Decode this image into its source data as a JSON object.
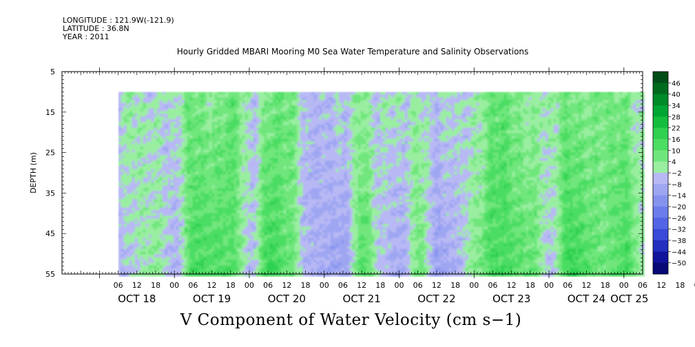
{
  "header": {
    "longitude": "LONGITUDE : 121.9W(-121.9)",
    "latitude": "LATITUDE : 36.8N",
    "year": "YEAR : 2011",
    "title": "Hourly Gridded MBARI Mooring M0 Sea Water Temperature and Salinity Observations"
  },
  "chart_data": {
    "type": "heatmap",
    "title": "Hourly Gridded MBARI Mooring M0 Sea Water Temperature and Salinity Observations",
    "variable": "V Component of Water Velocity (cm s-1)",
    "xlabel_text": "V Component of Water Velocity (cm s−1)",
    "ylabel": "DEPTH (m)",
    "y_range": [
      5,
      55
    ],
    "y_ticks": [
      "5",
      "15",
      "25",
      "35",
      "45",
      "55"
    ],
    "y_inverted": true,
    "data_depth_range": [
      10,
      55
    ],
    "x_time_range": [
      "OCT 17 12:00",
      "OCT 25 06:00"
    ],
    "data_time_start": "OCT 18 06:00",
    "hour_tick_labels": [
      "06",
      "12",
      "18",
      "00",
      "06",
      "12",
      "18",
      "00",
      "06",
      "12",
      "18",
      "00",
      "06",
      "12",
      "18",
      "00",
      "06",
      "12",
      "18",
      "00",
      "06",
      "12",
      "18",
      "00",
      "06",
      "12",
      "18",
      "00",
      "06",
      "12",
      "18",
      "00"
    ],
    "day_labels": [
      "OCT 18",
      "OCT 19",
      "OCT 20",
      "OCT 21",
      "OCT 22",
      "OCT 23",
      "OCT 24",
      "OCT 25"
    ],
    "colorbar_levels": [
      "46",
      "40",
      "34",
      "28",
      "22",
      "16",
      "10",
      "4",
      "−2",
      "−8",
      "−14",
      "−20",
      "−26",
      "−32",
      "−38",
      "−44",
      "−50"
    ],
    "colorbar_colors": [
      "#004d17",
      "#006b1f",
      "#008a28",
      "#00a532",
      "#14bd3e",
      "#2fd050",
      "#4cdd63",
      "#6fe67c",
      "#9aeea0",
      "#b8b8f4",
      "#9ea6f2",
      "#8593ef",
      "#6b7deb",
      "#5365e6",
      "#3a4ad8",
      "#232fbf",
      "#10149c",
      "#070875"
    ],
    "depth_profile_v": [
      {
        "time": "OCT 18 06",
        "v": -4
      },
      {
        "time": "OCT 18 18",
        "v": 2
      },
      {
        "time": "OCT 19 00",
        "v": -6
      },
      {
        "time": "OCT 19 06",
        "v": 12
      },
      {
        "time": "OCT 19 18",
        "v": 10
      },
      {
        "time": "OCT 20 00",
        "v": -4
      },
      {
        "time": "OCT 20 06",
        "v": 14
      },
      {
        "time": "OCT 20 12",
        "v": 8
      },
      {
        "time": "OCT 20 18",
        "v": -6
      },
      {
        "time": "OCT 21 06",
        "v": -10
      },
      {
        "time": "OCT 21 12",
        "v": 10
      },
      {
        "time": "OCT 21 18",
        "v": -4
      },
      {
        "time": "OCT 22 00",
        "v": -8
      },
      {
        "time": "OCT 22 06",
        "v": 6
      },
      {
        "time": "OCT 22 12",
        "v": -10
      },
      {
        "time": "OCT 22 18",
        "v": -6
      },
      {
        "time": "OCT 23 00",
        "v": 4
      },
      {
        "time": "OCT 23 06",
        "v": 12
      },
      {
        "time": "OCT 23 18",
        "v": 8
      },
      {
        "time": "OCT 24 00",
        "v": -4
      },
      {
        "time": "OCT 24 06",
        "v": 14
      },
      {
        "time": "OCT 24 18",
        "v": 6
      },
      {
        "time": "OCT 25 00",
        "v": 12
      },
      {
        "time": "OCT 25 06",
        "v": 0
      }
    ]
  }
}
